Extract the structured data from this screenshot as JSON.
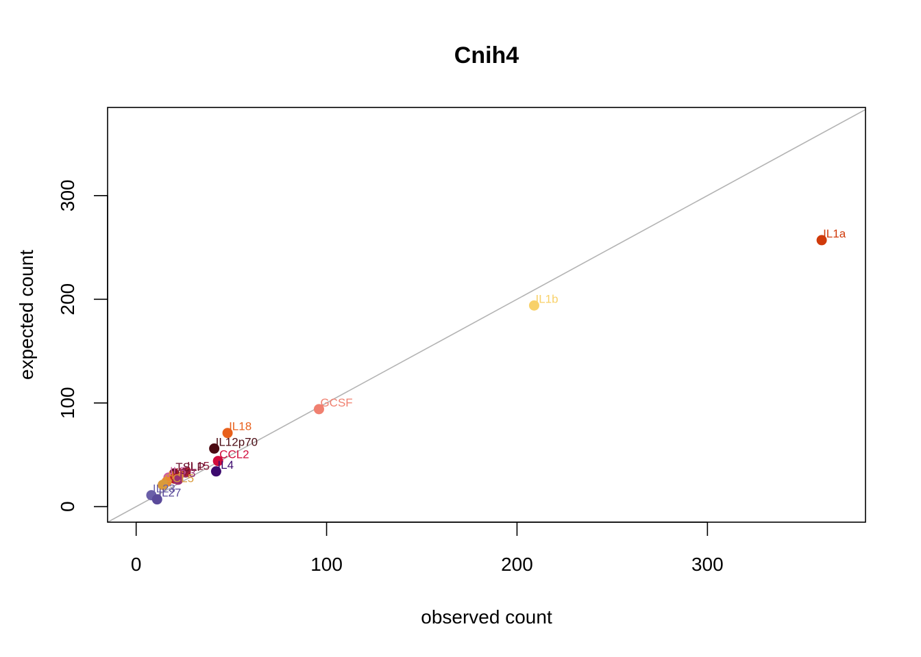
{
  "chart_data": {
    "type": "scatter",
    "title": "Cnih4",
    "xlabel": "observed count",
    "ylabel": "expected count",
    "xlim": [
      -15,
      383
    ],
    "ylim": [
      -15,
      385
    ],
    "xticks": [
      0,
      100,
      200,
      300
    ],
    "yticks": [
      0,
      100,
      200,
      300
    ],
    "xtick_labels": [
      "0",
      "100",
      "200",
      "300"
    ],
    "ytick_labels": [
      "0",
      "100",
      "200",
      "300"
    ],
    "grid": false,
    "reference_line": "y = x",
    "reference_line_color": "#b3b3b3",
    "points": [
      {
        "label": "IL1a",
        "x": 360,
        "y": 257,
        "color": "#d03a0a"
      },
      {
        "label": "IL1b",
        "x": 209,
        "y": 194,
        "color": "#f8d169"
      },
      {
        "label": "GCSF",
        "x": 96,
        "y": 94,
        "color": "#f08070"
      },
      {
        "label": "IL18",
        "x": 48,
        "y": 71,
        "color": "#e8601c"
      },
      {
        "label": "IL12p70",
        "x": 41,
        "y": 56,
        "color": "#4b0a12"
      },
      {
        "label": "CCL2",
        "x": 43,
        "y": 44,
        "color": "#d10c3c"
      },
      {
        "label": "IL4",
        "x": 42,
        "y": 34,
        "color": "#3c0a6e"
      },
      {
        "label": "IL15",
        "x": 26,
        "y": 33,
        "color": "#8a1a3a"
      },
      {
        "label": "TSLP",
        "x": 20,
        "y": 32,
        "color": "#6a0d2a"
      },
      {
        "label": "IL5",
        "x": 17,
        "y": 28,
        "color": "#cf5fa0"
      },
      {
        "label": "IL2",
        "x": 20,
        "y": 27,
        "color": "#b81f2e"
      },
      {
        "label": "IL6",
        "x": 16,
        "y": 24,
        "color": "#e88a30"
      },
      {
        "label": "IL3",
        "x": 22,
        "y": 26,
        "color": "#9b2f6f"
      },
      {
        "label": "CCL5",
        "x": 14,
        "y": 21,
        "color": "#d99a3a"
      },
      {
        "label": "IL23",
        "x": 8,
        "y": 11,
        "color": "#6a5fa8"
      },
      {
        "label": "IL27",
        "x": 11,
        "y": 7,
        "color": "#5a4a9a"
      }
    ]
  }
}
